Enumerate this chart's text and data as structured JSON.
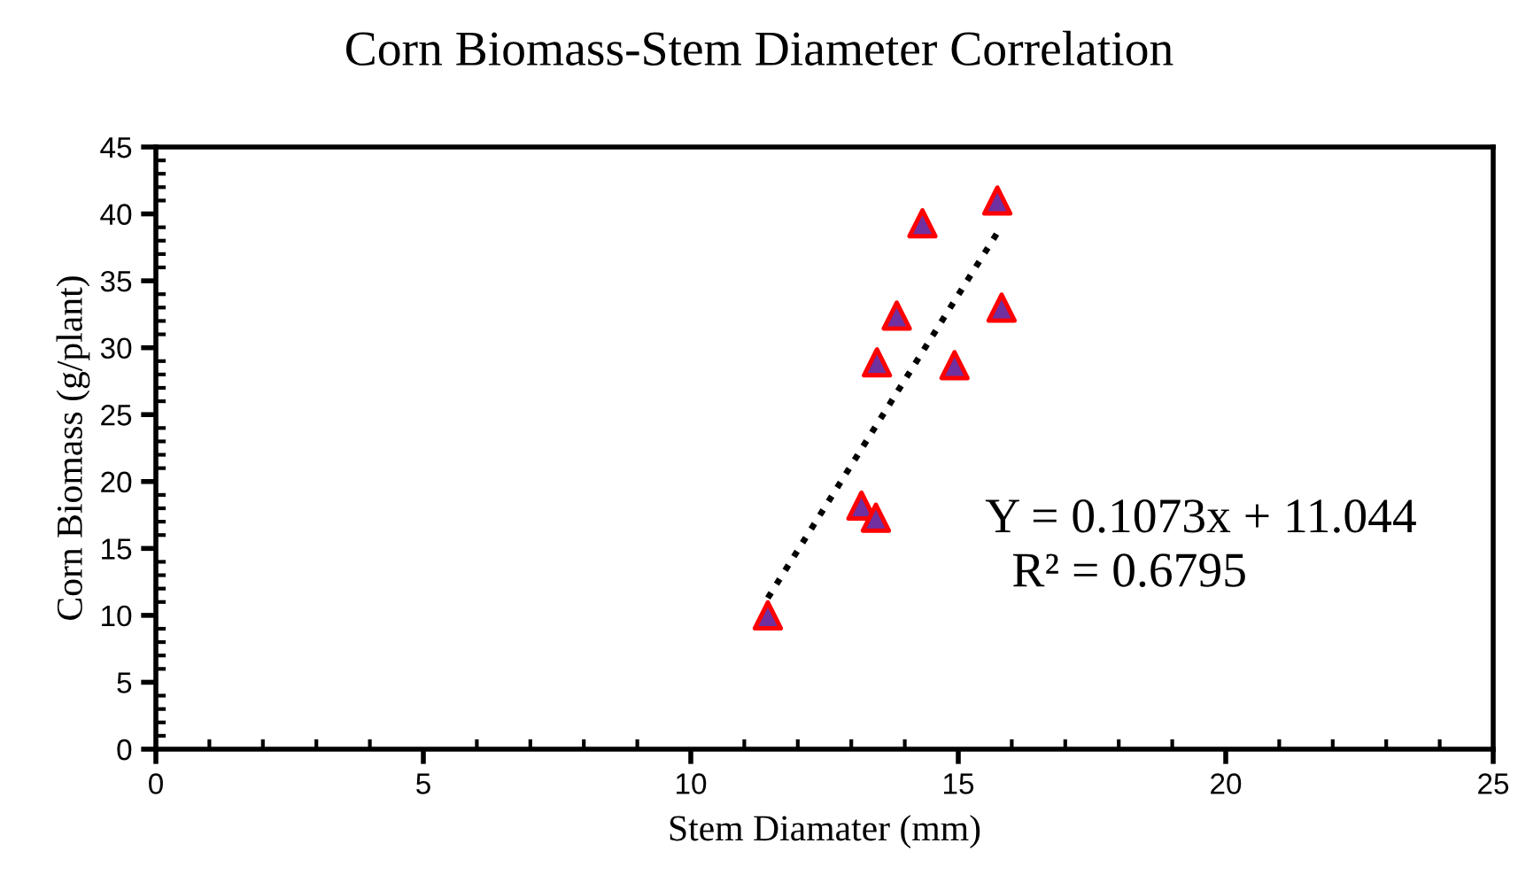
{
  "chart_data": {
    "type": "scatter",
    "title": "Corn Biomass-Stem Diameter Correlation",
    "xlabel": "Stem Diamater (mm)",
    "ylabel": "Corn Biomass (g/plant)",
    "series": [
      {
        "color": "#7030a0",
        "marker": "triangle",
        "x": [
          11.44,
          13.19,
          13.46,
          13.48,
          13.85,
          14.33,
          14.93,
          15.73,
          15.81
        ],
        "values": [
          10.0,
          18.2,
          17.3,
          28.9,
          32.4,
          39.3,
          28.7,
          41.0,
          33.0
        ]
      },
      {
        "type": "line",
        "color": "#000000",
        "line_style": "dotted",
        "marker": "none",
        "x": [
          11.44,
          15.81
        ],
        "values": [
          11.3,
          39.1
        ]
      }
    ],
    "annotations": [
      "Y = 0.1073x + 11.044",
      "R² = 0.6795"
    ],
    "xlim": [
      0,
      25
    ],
    "xticks": [
      0,
      5,
      10,
      15,
      20,
      25
    ],
    "ylim": [
      0,
      45
    ],
    "yticks": [
      0,
      5,
      10,
      15,
      20,
      25,
      30,
      35,
      40,
      45
    ],
    "grid": false,
    "legend": false
  }
}
